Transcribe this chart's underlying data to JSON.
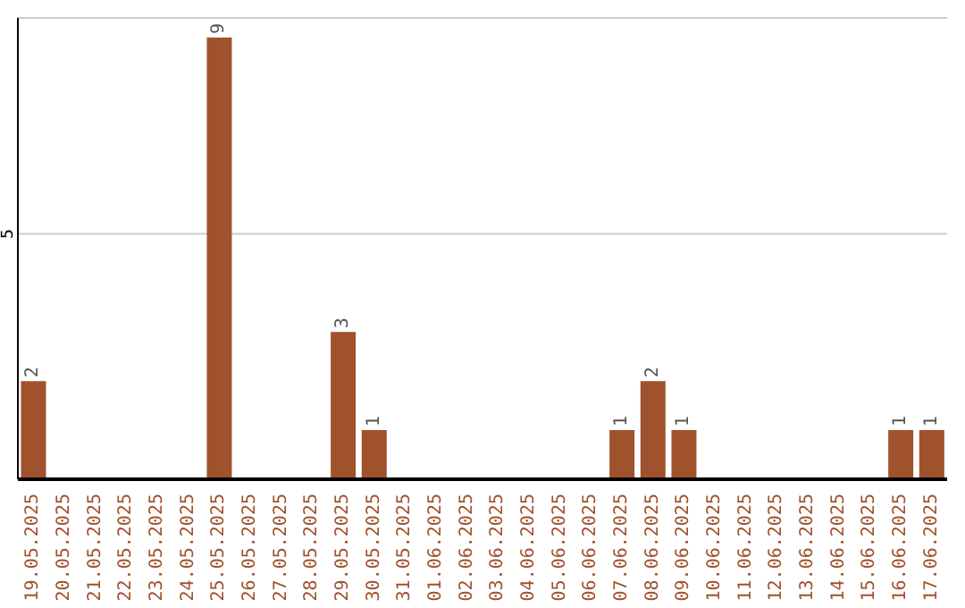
{
  "chart_data": {
    "type": "bar",
    "categories": [
      "19.05.2025",
      "20.05.2025",
      "21.05.2025",
      "22.05.2025",
      "23.05.2025",
      "24.05.2025",
      "25.05.2025",
      "26.05.2025",
      "27.05.2025",
      "28.05.2025",
      "29.05.2025",
      "30.05.2025",
      "31.05.2025",
      "01.06.2025",
      "02.06.2025",
      "03.06.2025",
      "04.06.2025",
      "05.06.2025",
      "06.06.2025",
      "07.06.2025",
      "08.06.2025",
      "09.06.2025",
      "10.06.2025",
      "11.06.2025",
      "12.06.2025",
      "13.06.2025",
      "14.06.2025",
      "15.06.2025",
      "16.06.2025",
      "17.06.2025"
    ],
    "values": [
      2,
      0,
      0,
      0,
      0,
      0,
      9,
      0,
      0,
      0,
      3,
      1,
      0,
      0,
      0,
      0,
      0,
      0,
      0,
      1,
      2,
      1,
      0,
      0,
      0,
      0,
      0,
      0,
      1,
      1
    ],
    "value_labels": [
      "2",
      null,
      null,
      null,
      null,
      null,
      "9",
      null,
      null,
      null,
      "3",
      "1",
      null,
      null,
      null,
      null,
      null,
      null,
      null,
      "1",
      "2",
      "1",
      null,
      null,
      null,
      null,
      null,
      null,
      "1",
      "1"
    ],
    "color": "#a0522d",
    "ylim": [
      0,
      9.4
    ],
    "yticks": [
      5
    ],
    "grid": "y",
    "legend": false
  }
}
